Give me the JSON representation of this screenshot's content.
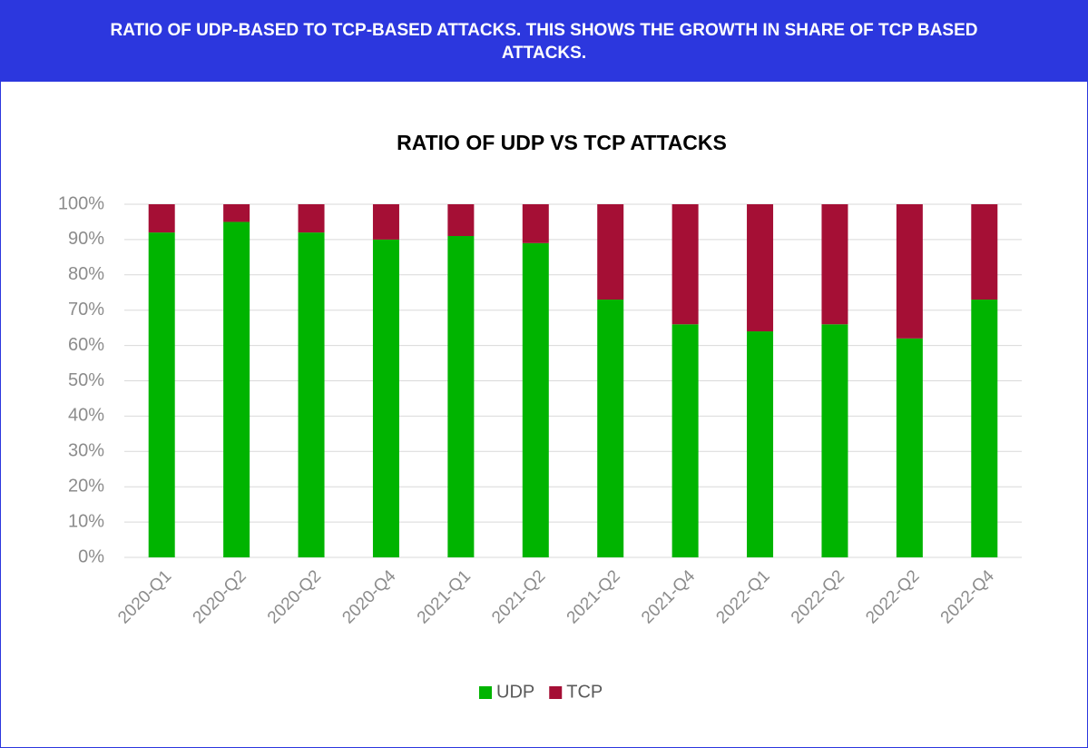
{
  "header": {
    "title": "RATIO OF UDP-BASED TO TCP-BASED ATTACKS. THIS SHOWS THE GROWTH IN SHARE OF TCP BASED ATTACKS."
  },
  "chart_data": {
    "type": "stacked_bar",
    "title": "RATIO OF UDP VS TCP ATTACKS",
    "categories": [
      "2020-Q1",
      "2020-Q2",
      "2020-Q2",
      "2020-Q4",
      "2021-Q1",
      "2021-Q2",
      "2021-Q2",
      "2021-Q4",
      "2022-Q1",
      "2022-Q2",
      "2022-Q2",
      "2022-Q4"
    ],
    "series": [
      {
        "name": "UDP",
        "color": "#00b400",
        "values": [
          92,
          95,
          92,
          90,
          91,
          89,
          73,
          66,
          64,
          66,
          62,
          73
        ]
      },
      {
        "name": "TCP",
        "color": "#a50f35",
        "values": [
          8,
          5,
          8,
          10,
          9,
          11,
          27,
          34,
          36,
          34,
          38,
          27
        ]
      }
    ],
    "ylim": [
      0,
      100
    ],
    "yticks": [
      {
        "value": 0,
        "label": "0%"
      },
      {
        "value": 10,
        "label": "10%"
      },
      {
        "value": 20,
        "label": "20%"
      },
      {
        "value": 30,
        "label": "30%"
      },
      {
        "value": 40,
        "label": "40%"
      },
      {
        "value": 50,
        "label": "50%"
      },
      {
        "value": 60,
        "label": "60%"
      },
      {
        "value": 70,
        "label": "70%"
      },
      {
        "value": 80,
        "label": "80%"
      },
      {
        "value": 90,
        "label": "90%"
      },
      {
        "value": 100,
        "label": "100%"
      }
    ],
    "grid": true,
    "legend": "bottom"
  }
}
